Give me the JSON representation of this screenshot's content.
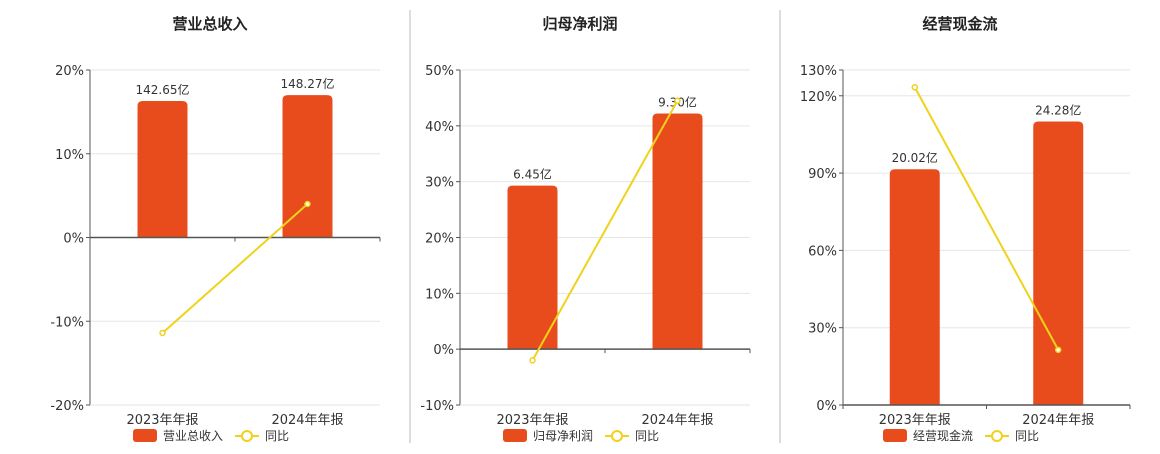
{
  "colors": {
    "bar": "#e84c1c",
    "line": "#f0d21c",
    "axis": "#555555",
    "grid": "#e6e6e6",
    "divider": "#bbbbbb",
    "text": "#333333"
  },
  "chart_data": [
    {
      "type": "bar",
      "title": "营业总收入",
      "categories": [
        "2023年年报",
        "2024年年报"
      ],
      "series": [
        {
          "name": "营业总收入",
          "type": "bar",
          "values": [
            16.3,
            17.0
          ],
          "labels": [
            "142.65亿",
            "148.27亿"
          ]
        },
        {
          "name": "同比",
          "type": "line",
          "values": [
            -11.4,
            4.0
          ]
        }
      ],
      "y_ticks": [
        20,
        10,
        0,
        -10,
        -20
      ],
      "y_tick_labels": [
        "20%",
        "10%",
        "0%",
        "-10%",
        "-20%"
      ],
      "ylim": [
        -20,
        20
      ],
      "legend_position": "bottom",
      "grid": true
    },
    {
      "type": "bar",
      "title": "归母净利润",
      "categories": [
        "2023年年报",
        "2024年年报"
      ],
      "series": [
        {
          "name": "归母净利润",
          "type": "bar",
          "values": [
            29.3,
            42.2
          ],
          "labels": [
            "6.45亿",
            "9.30亿"
          ]
        },
        {
          "name": "同比",
          "type": "line",
          "values": [
            -2.0,
            44.5
          ]
        }
      ],
      "y_ticks": [
        50,
        40,
        30,
        20,
        10,
        0,
        -10
      ],
      "y_tick_labels": [
        "50%",
        "40%",
        "30%",
        "20%",
        "10%",
        "0%",
        "-10%"
      ],
      "ylim": [
        -10,
        50
      ],
      "legend_position": "bottom",
      "grid": true
    },
    {
      "type": "bar",
      "title": "经营现金流",
      "categories": [
        "2023年年报",
        "2024年年报"
      ],
      "series": [
        {
          "name": "经营现金流",
          "type": "bar",
          "values": [
            91.5,
            110.0
          ],
          "labels": [
            "20.02亿",
            "24.28亿"
          ]
        },
        {
          "name": "同比",
          "type": "line",
          "values": [
            123.3,
            21.4
          ]
        }
      ],
      "y_ticks": [
        130,
        120,
        90,
        60,
        30,
        0
      ],
      "y_tick_labels": [
        "130%",
        "120%",
        "90%",
        "60%",
        "30%",
        "0%"
      ],
      "ylim": [
        0,
        130
      ],
      "legend_position": "bottom",
      "grid": true
    }
  ]
}
